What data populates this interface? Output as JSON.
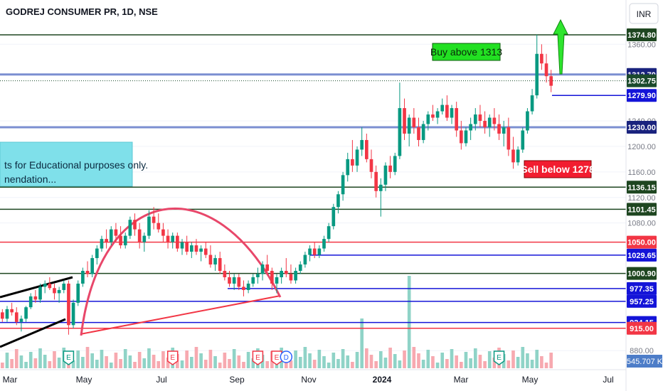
{
  "header": {
    "symbol_title": "GODREJ CONSUMER PR, 1D, NSE",
    "currency_button": "INR"
  },
  "theme": {
    "up_color": "#089981",
    "down_color": "#f23645",
    "axis_text": "#131722",
    "grid": "#f0f3fa"
  },
  "annotations": {
    "buy_label": "Buy above 1313",
    "sell_label": "Sell below 1278",
    "disclaimer_line1": "ts for Educational purposes only.",
    "disclaimer_line2": "nendation...",
    "target_arrow_icon": "up-arrow-icon"
  },
  "chart_data": {
    "type": "candlestick",
    "title": "GODREJ CONSUMER PR, 1D, NSE",
    "currency": "INR",
    "ylim": [
      860,
      1390
    ],
    "y_ticks": [
      880,
      1080,
      1120,
      1160,
      1200,
      1240,
      1360
    ],
    "x_ticks": [
      "Mar",
      "May",
      "Jul",
      "Sep",
      "Nov",
      "2024",
      "Mar",
      "May",
      "Jul"
    ],
    "horizontal_levels": [
      {
        "value": 1374.8,
        "label": "1374.80",
        "color": "#1e4620",
        "line": "#1e4620"
      },
      {
        "value": 1312.7,
        "label": "1312.70",
        "color": "#1a237e",
        "line": "#7b8fd1"
      },
      {
        "value": 1302.75,
        "label": "1302.75",
        "color": "#1b4a2c",
        "line": "#1b4a2c"
      },
      {
        "value": 1279.9,
        "label": "1279.90",
        "color": "#1414d8",
        "line": "#1414d8"
      },
      {
        "value": 1230.0,
        "label": "1230.00",
        "color": "#1a237e",
        "line": "#7b8fd1"
      },
      {
        "value": 1136.15,
        "label": "1136.15",
        "color": "#1e4620",
        "line": "#1e4620"
      },
      {
        "value": 1101.45,
        "label": "1101.45",
        "color": "#1e4620",
        "line": "#1e4620"
      },
      {
        "value": 1050.0,
        "label": "1050.00",
        "color": "#f23645",
        "line": "#f23645"
      },
      {
        "value": 1029.65,
        "label": "1029.65",
        "color": "#1414d8",
        "line": "#1414d8"
      },
      {
        "value": 1000.9,
        "label": "1000.90",
        "color": "#1e4620",
        "line": "#1e4620"
      },
      {
        "value": 977.35,
        "label": "977.35",
        "color": "#1414d8",
        "line": "#1414d8"
      },
      {
        "value": 957.25,
        "label": "957.25",
        "color": "#1414d8",
        "line": "#1414d8"
      },
      {
        "value": 924.15,
        "label": "924.15",
        "color": "#1414d8",
        "line": "#1414d8"
      },
      {
        "value": 915.0,
        "label": "915.00",
        "color": "#f23645",
        "line": "#f23645"
      }
    ],
    "volume_label": "545.707 K",
    "event_markers": [
      {
        "x_index": 14,
        "kind": "E"
      },
      {
        "x_index": 36,
        "kind": "E"
      },
      {
        "x_index": 54,
        "kind": "E"
      },
      {
        "x_index": 58,
        "kind": "E"
      },
      {
        "x_index": 60,
        "kind": "D"
      },
      {
        "x_index": 105,
        "kind": "E"
      },
      {
        "x_index": 147,
        "kind": "E"
      },
      {
        "x_index": 153,
        "kind": "E"
      },
      {
        "x_index": 158,
        "kind": "lightning"
      }
    ],
    "candles": [
      [
        940,
        945,
        925,
        930
      ],
      [
        930,
        950,
        925,
        945
      ],
      [
        945,
        955,
        935,
        940
      ],
      [
        940,
        948,
        920,
        925
      ],
      [
        925,
        935,
        910,
        930
      ],
      [
        930,
        950,
        925,
        948
      ],
      [
        948,
        970,
        945,
        965
      ],
      [
        965,
        975,
        955,
        960
      ],
      [
        960,
        985,
        955,
        980
      ],
      [
        980,
        990,
        970,
        985
      ],
      [
        985,
        995,
        975,
        978
      ],
      [
        978,
        985,
        960,
        970
      ],
      [
        970,
        980,
        955,
        975
      ],
      [
        975,
        990,
        970,
        985
      ],
      [
        985,
        990,
        905,
        920
      ],
      [
        920,
        960,
        915,
        955
      ],
      [
        955,
        990,
        950,
        985
      ],
      [
        985,
        1010,
        980,
        1005
      ],
      [
        1005,
        1020,
        995,
        1000
      ],
      [
        1000,
        1030,
        995,
        1025
      ],
      [
        1025,
        1045,
        1015,
        1040
      ],
      [
        1040,
        1060,
        1035,
        1055
      ],
      [
        1055,
        1070,
        1040,
        1050
      ],
      [
        1050,
        1075,
        1045,
        1070
      ],
      [
        1070,
        1080,
        1050,
        1060
      ],
      [
        1060,
        1075,
        1040,
        1045
      ],
      [
        1045,
        1065,
        1040,
        1060
      ],
      [
        1060,
        1090,
        1055,
        1085
      ],
      [
        1085,
        1095,
        1060,
        1070
      ],
      [
        1070,
        1080,
        1040,
        1050
      ],
      [
        1050,
        1065,
        1035,
        1060
      ],
      [
        1060,
        1100,
        1055,
        1090
      ],
      [
        1090,
        1105,
        1070,
        1080
      ],
      [
        1080,
        1095,
        1065,
        1070
      ],
      [
        1070,
        1080,
        1050,
        1060
      ],
      [
        1060,
        1070,
        1040,
        1050
      ],
      [
        1050,
        1065,
        1040,
        1060
      ],
      [
        1060,
        1065,
        1035,
        1040
      ],
      [
        1040,
        1055,
        1030,
        1050
      ],
      [
        1050,
        1060,
        1030,
        1035
      ],
      [
        1035,
        1050,
        1025,
        1045
      ],
      [
        1045,
        1055,
        1030,
        1035
      ],
      [
        1035,
        1045,
        1020,
        1040
      ],
      [
        1040,
        1050,
        1025,
        1030
      ],
      [
        1030,
        1045,
        1010,
        1015
      ],
      [
        1015,
        1030,
        1005,
        1025
      ],
      [
        1025,
        1035,
        1000,
        1005
      ],
      [
        1005,
        1015,
        990,
        995
      ],
      [
        995,
        1005,
        980,
        985
      ],
      [
        985,
        1000,
        975,
        995
      ],
      [
        995,
        1000,
        975,
        980
      ],
      [
        980,
        990,
        965,
        975
      ],
      [
        975,
        990,
        970,
        985
      ],
      [
        985,
        1000,
        980,
        995
      ],
      [
        995,
        1010,
        985,
        1000
      ],
      [
        1000,
        1020,
        990,
        1015
      ],
      [
        1015,
        1030,
        1000,
        1005
      ],
      [
        1005,
        1010,
        975,
        985
      ],
      [
        985,
        1000,
        970,
        995
      ],
      [
        995,
        1010,
        985,
        1005
      ],
      [
        1005,
        1025,
        995,
        1000
      ],
      [
        1000,
        1015,
        985,
        990
      ],
      [
        990,
        1010,
        985,
        1005
      ],
      [
        1005,
        1020,
        1000,
        1015
      ],
      [
        1015,
        1035,
        1010,
        1030
      ],
      [
        1030,
        1045,
        1020,
        1040
      ],
      [
        1040,
        1050,
        1025,
        1030
      ],
      [
        1030,
        1045,
        1025,
        1040
      ],
      [
        1040,
        1060,
        1035,
        1055
      ],
      [
        1055,
        1080,
        1050,
        1075
      ],
      [
        1075,
        1110,
        1070,
        1105
      ],
      [
        1105,
        1130,
        1095,
        1125
      ],
      [
        1125,
        1160,
        1115,
        1155
      ],
      [
        1155,
        1190,
        1145,
        1180
      ],
      [
        1180,
        1210,
        1160,
        1170
      ],
      [
        1170,
        1200,
        1160,
        1195
      ],
      [
        1195,
        1230,
        1185,
        1210
      ],
      [
        1210,
        1220,
        1175,
        1180
      ],
      [
        1180,
        1195,
        1150,
        1160
      ],
      [
        1160,
        1170,
        1120,
        1130
      ],
      [
        1130,
        1150,
        1090,
        1140
      ],
      [
        1140,
        1175,
        1130,
        1170
      ],
      [
        1170,
        1185,
        1150,
        1160
      ],
      [
        1160,
        1190,
        1155,
        1185
      ],
      [
        1185,
        1300,
        1180,
        1260
      ],
      [
        1260,
        1275,
        1210,
        1220
      ],
      [
        1220,
        1250,
        1200,
        1245
      ],
      [
        1245,
        1260,
        1220,
        1230
      ],
      [
        1230,
        1245,
        1200,
        1210
      ],
      [
        1210,
        1240,
        1205,
        1235
      ],
      [
        1235,
        1255,
        1225,
        1250
      ],
      [
        1250,
        1265,
        1240,
        1245
      ],
      [
        1245,
        1260,
        1235,
        1255
      ],
      [
        1255,
        1275,
        1250,
        1265
      ],
      [
        1265,
        1280,
        1240,
        1245
      ],
      [
        1245,
        1265,
        1235,
        1260
      ],
      [
        1260,
        1270,
        1215,
        1225
      ],
      [
        1225,
        1240,
        1195,
        1205
      ],
      [
        1205,
        1230,
        1200,
        1225
      ],
      [
        1225,
        1245,
        1210,
        1235
      ],
      [
        1235,
        1260,
        1225,
        1250
      ],
      [
        1250,
        1265,
        1230,
        1240
      ],
      [
        1240,
        1255,
        1220,
        1230
      ],
      [
        1230,
        1250,
        1215,
        1245
      ],
      [
        1245,
        1260,
        1225,
        1235
      ],
      [
        1235,
        1250,
        1210,
        1220
      ],
      [
        1220,
        1240,
        1200,
        1230
      ],
      [
        1230,
        1245,
        1185,
        1195
      ],
      [
        1195,
        1215,
        1165,
        1175
      ],
      [
        1175,
        1200,
        1170,
        1195
      ],
      [
        1195,
        1230,
        1190,
        1225
      ],
      [
        1225,
        1260,
        1220,
        1255
      ],
      [
        1255,
        1290,
        1250,
        1280
      ],
      [
        1280,
        1375,
        1275,
        1345
      ],
      [
        1345,
        1360,
        1320,
        1330
      ],
      [
        1330,
        1345,
        1300,
        1310
      ],
      [
        1310,
        1320,
        1285,
        1295
      ]
    ]
  }
}
